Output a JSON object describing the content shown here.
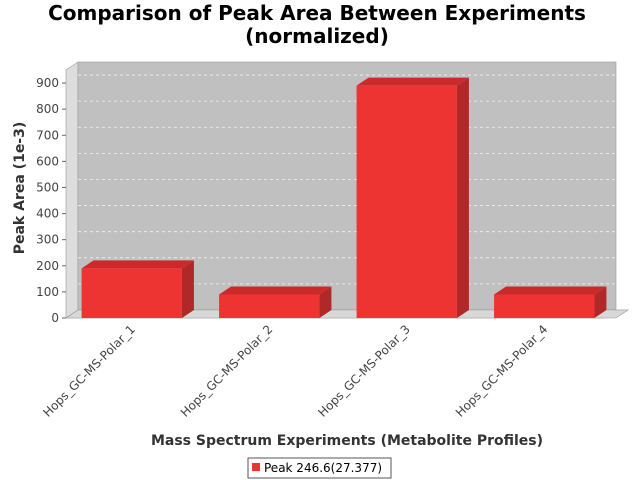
{
  "chart_data": {
    "type": "bar",
    "title_lines": [
      "Comparison of Peak Area Between Experiments",
      "(normalized)"
    ],
    "xlabel": "Mass Spectrum Experiments (Metabolite Profiles)",
    "ylabel": "Peak Area (1e-3)",
    "categories": [
      "Hops_GC-MS-Polar_1",
      "Hops_GC-MS-Polar_2",
      "Hops_GC-MS-Polar_3",
      "Hops_GC-MS-Polar_4"
    ],
    "series": [
      {
        "name": "Peak 246.6(27.377)",
        "values": [
          190,
          90,
          890,
          90
        ]
      }
    ],
    "ylim": [
      0,
      950
    ],
    "yticks": [
      0,
      100,
      200,
      300,
      400,
      500,
      600,
      700,
      800,
      900
    ],
    "grid": true,
    "legend_position": "bottom",
    "colors": {
      "bar": "#ee3333",
      "plot_bg": "#c0c0c0"
    }
  }
}
